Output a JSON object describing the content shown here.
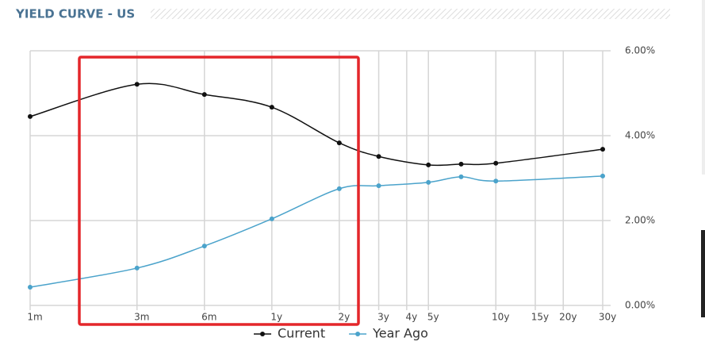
{
  "chart_data": {
    "type": "line",
    "title": "YIELD CURVE - US",
    "x": [
      1,
      3,
      6,
      12,
      24,
      36,
      60,
      84,
      120,
      360
    ],
    "xscale": "log",
    "xlim": [
      1,
      360
    ],
    "xticks": [
      {
        "value": 1,
        "label": "1m"
      },
      {
        "value": 3,
        "label": "3m"
      },
      {
        "value": 6,
        "label": "6m"
      },
      {
        "value": 12,
        "label": "1y"
      },
      {
        "value": 24,
        "label": "2y"
      },
      {
        "value": 36,
        "label": "3y"
      },
      {
        "value": 48,
        "label": "4y"
      },
      {
        "value": 60,
        "label": "5y"
      },
      {
        "value": 120,
        "label": "10y"
      },
      {
        "value": 180,
        "label": "15y"
      },
      {
        "value": 240,
        "label": "20y"
      },
      {
        "value": 360,
        "label": "30y"
      }
    ],
    "ylim": [
      0,
      6
    ],
    "yticks": [
      {
        "value": 0,
        "label": "0.00%"
      },
      {
        "value": 2,
        "label": "2.00%"
      },
      {
        "value": 4,
        "label": "4.00%"
      },
      {
        "value": 6,
        "label": "6.00%"
      }
    ],
    "grid": true,
    "legend": "bottom",
    "series": [
      {
        "name": "Current",
        "color": "#111111",
        "values": [
          4.45,
          5.21,
          4.97,
          4.67,
          3.83,
          3.51,
          3.31,
          3.33,
          3.35,
          3.68
        ]
      },
      {
        "name": "Year Ago",
        "color": "#4ba3cb",
        "values": [
          0.43,
          0.88,
          1.4,
          2.04,
          2.75,
          2.82,
          2.9,
          3.03,
          2.93,
          3.05
        ]
      }
    ]
  }
}
